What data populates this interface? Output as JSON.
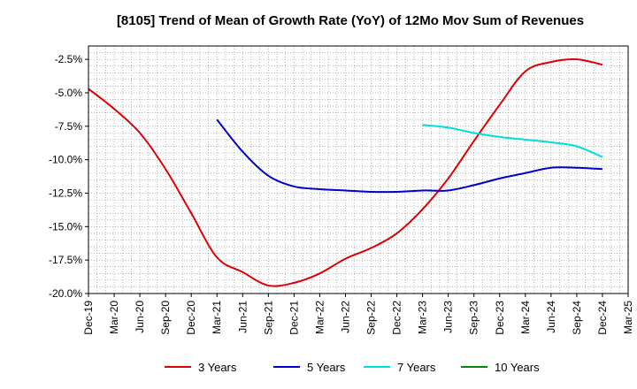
{
  "chart_data": {
    "type": "line",
    "title": "[8105]  Trend of Mean of Growth Rate (YoY) of 12Mo Mov Sum of Revenues",
    "xlabel": "",
    "ylabel": "",
    "ylim": [
      -20.0,
      -1.5
    ],
    "yticks": [
      -2.5,
      -5.0,
      -7.5,
      -10.0,
      -12.5,
      -15.0,
      -17.5,
      -20.0
    ],
    "ytick_labels": [
      "-2.5%",
      "-5.0%",
      "-7.5%",
      "-10.0%",
      "-12.5%",
      "-15.0%",
      "-17.5%",
      "-20.0%"
    ],
    "x_start": "Dec-19",
    "x_end": "Mar-25",
    "xtick_labels": [
      "Dec-19",
      "Mar-20",
      "Jun-20",
      "Sep-20",
      "Dec-20",
      "Mar-21",
      "Jun-21",
      "Sep-21",
      "Dec-21",
      "Mar-22",
      "Jun-22",
      "Sep-22",
      "Dec-22",
      "Mar-23",
      "Jun-23",
      "Sep-23",
      "Dec-23",
      "Mar-24",
      "Jun-24",
      "Sep-24",
      "Dec-24",
      "Mar-25"
    ],
    "grid": true,
    "legend_position": "bottom",
    "series": [
      {
        "name": "3 Years",
        "color": "#dd0000",
        "x": [
          "Dec-19",
          "Mar-20",
          "Jun-20",
          "Sep-20",
          "Dec-20",
          "Mar-21",
          "Jun-21",
          "Sep-21",
          "Dec-21",
          "Mar-22",
          "Jun-22",
          "Sep-22",
          "Dec-22",
          "Mar-23",
          "Jun-23",
          "Sep-23",
          "Dec-23",
          "Mar-24",
          "Jun-24",
          "Sep-24",
          "Dec-24"
        ],
        "values": [
          -4.7,
          -6.2,
          -8.0,
          -10.7,
          -14.0,
          -17.3,
          -18.4,
          -19.4,
          -19.2,
          -18.5,
          -17.4,
          -16.6,
          -15.5,
          -13.7,
          -11.4,
          -8.6,
          -5.9,
          -3.4,
          -2.7,
          -2.5,
          -2.9
        ]
      },
      {
        "name": "5 Years",
        "color": "#0000cc",
        "x": [
          "Mar-21",
          "Jun-21",
          "Sep-21",
          "Dec-21",
          "Mar-22",
          "Jun-22",
          "Sep-22",
          "Dec-22",
          "Mar-23",
          "Jun-23",
          "Sep-23",
          "Dec-23",
          "Mar-24",
          "Jun-24",
          "Sep-24",
          "Dec-24"
        ],
        "values": [
          -7.0,
          -9.4,
          -11.2,
          -12.0,
          -12.2,
          -12.3,
          -12.4,
          -12.4,
          -12.3,
          -12.3,
          -11.9,
          -11.4,
          -11.0,
          -10.6,
          -10.6,
          -10.7
        ]
      },
      {
        "name": "7 Years",
        "color": "#00dddd",
        "x": [
          "Mar-23",
          "Jun-23",
          "Sep-23",
          "Dec-23",
          "Mar-24",
          "Jun-24",
          "Sep-24",
          "Dec-24"
        ],
        "values": [
          -7.4,
          -7.6,
          -8.0,
          -8.3,
          -8.5,
          -8.7,
          -9.0,
          -9.8
        ]
      },
      {
        "name": "10 Years",
        "color": "#008800",
        "x": [],
        "values": []
      }
    ]
  }
}
